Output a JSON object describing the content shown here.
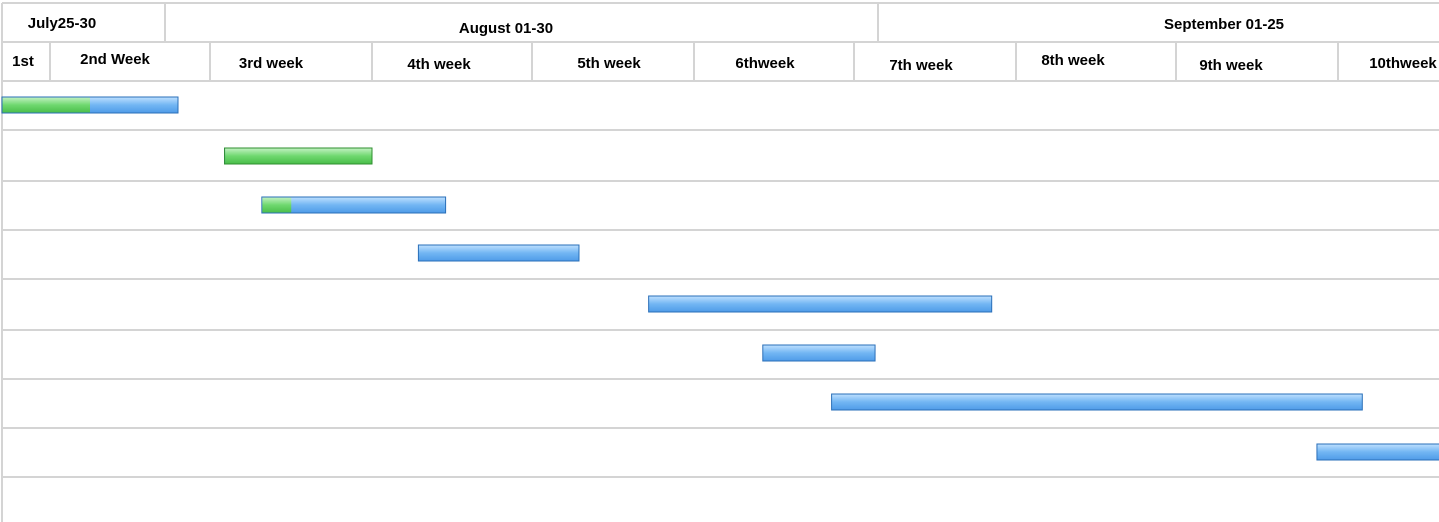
{
  "chart_data": {
    "type": "gantt",
    "months": [
      {
        "label": "July25-30"
      },
      {
        "label": "August 01-30"
      },
      {
        "label": "September 01-25"
      }
    ],
    "weeks": [
      {
        "label": "1st"
      },
      {
        "label": "2nd Week"
      },
      {
        "label": "3rd week"
      },
      {
        "label": "4th week"
      },
      {
        "label": "5th week"
      },
      {
        "label": "6thweek"
      },
      {
        "label": "7th week"
      },
      {
        "label": "8th week"
      },
      {
        "label": "9th week"
      },
      {
        "label": "10thweek"
      }
    ],
    "tasks": [
      {
        "start": 0.0,
        "end": 1.8,
        "progress": 0.5
      },
      {
        "start": 2.09,
        "end": 3.0,
        "progress": 1.0
      },
      {
        "start": 2.32,
        "end": 3.46,
        "progress": 0.16
      },
      {
        "start": 3.29,
        "end": 4.29,
        "progress": 0.0
      },
      {
        "start": 4.72,
        "end": 6.85,
        "progress": 0.0
      },
      {
        "start": 5.43,
        "end": 6.13,
        "progress": 0.0
      },
      {
        "start": 5.86,
        "end": 9.15,
        "progress": 0.0
      },
      {
        "start": 8.87,
        "end": 9.72,
        "progress": 0.0
      },
      {
        "start": 9.87,
        "end": 10.43,
        "progress": 0.0
      }
    ],
    "colors": {
      "planned": "#5aa8f0",
      "completed": "#5ccf5c",
      "bar_border": "#2a6fb8",
      "grid": "#d4d4d4"
    }
  }
}
